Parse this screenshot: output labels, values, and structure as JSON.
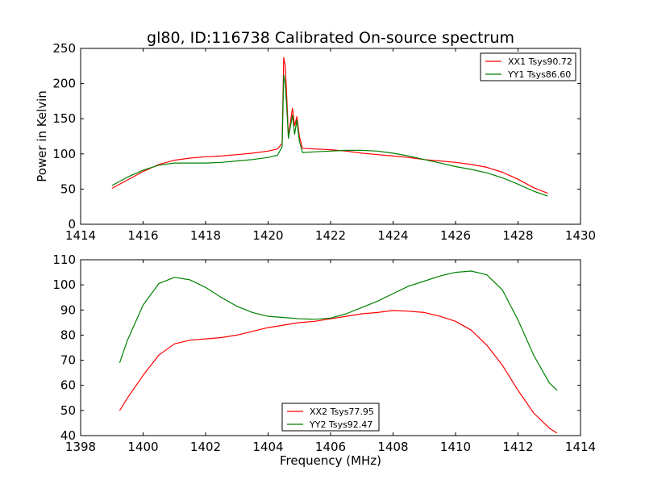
{
  "chart_data": [
    {
      "type": "line",
      "title": "gl80, ID:116738 Calibrated On-source spectrum",
      "xlabel": "",
      "ylabel": "Power in Kelvin",
      "xlim": [
        1414,
        1430
      ],
      "ylim": [
        0,
        250
      ],
      "xticks": [
        1414,
        1416,
        1418,
        1420,
        1422,
        1424,
        1426,
        1428,
        1430
      ],
      "yticks": [
        0,
        50,
        100,
        150,
        200,
        250
      ],
      "legend_position": "upper right",
      "series": [
        {
          "name": "XX1 Tsys90.72",
          "color": "#ff0000",
          "x": [
            1415.0,
            1415.5,
            1416.0,
            1416.5,
            1417.0,
            1417.5,
            1418.0,
            1418.5,
            1419.0,
            1419.5,
            1420.0,
            1420.3,
            1420.45,
            1420.5,
            1420.55,
            1420.6,
            1420.65,
            1420.7,
            1420.78,
            1420.85,
            1420.92,
            1421.0,
            1421.1,
            1421.5,
            1422.0,
            1422.5,
            1423.0,
            1423.5,
            1424.0,
            1424.5,
            1425.0,
            1425.5,
            1426.0,
            1426.5,
            1427.0,
            1427.5,
            1428.0,
            1428.5,
            1428.95
          ],
          "y": [
            51,
            63,
            75,
            85,
            91,
            94,
            96,
            97,
            99,
            101,
            104,
            107,
            115,
            237,
            225,
            180,
            125,
            140,
            165,
            140,
            153,
            125,
            108,
            107,
            106,
            104,
            101,
            99,
            97,
            95,
            92,
            90,
            88,
            85,
            81,
            74,
            64,
            52,
            44
          ]
        },
        {
          "name": "YY1 Tsys86.60",
          "color": "#008000",
          "x": [
            1415.0,
            1415.5,
            1416.0,
            1416.5,
            1417.0,
            1417.5,
            1418.0,
            1418.5,
            1419.0,
            1419.5,
            1420.0,
            1420.3,
            1420.45,
            1420.5,
            1420.55,
            1420.6,
            1420.65,
            1420.7,
            1420.78,
            1420.85,
            1420.92,
            1421.0,
            1421.1,
            1421.5,
            1422.0,
            1422.5,
            1423.0,
            1423.5,
            1424.0,
            1424.5,
            1425.0,
            1425.5,
            1426.0,
            1426.5,
            1427.0,
            1427.5,
            1428.0,
            1428.5,
            1428.95
          ],
          "y": [
            55,
            67,
            77,
            84,
            87,
            87,
            87,
            88,
            90,
            92,
            95,
            98,
            110,
            212,
            200,
            165,
            122,
            135,
            155,
            128,
            148,
            118,
            102,
            103,
            104,
            105,
            105,
            104,
            101,
            97,
            92,
            87,
            82,
            78,
            73,
            66,
            57,
            47,
            40
          ]
        }
      ]
    },
    {
      "type": "line",
      "title": "",
      "xlabel": "Frequency (MHz)",
      "ylabel": "",
      "xlim": [
        1398,
        1414
      ],
      "ylim": [
        40,
        110
      ],
      "xticks": [
        1398,
        1400,
        1402,
        1404,
        1406,
        1408,
        1410,
        1412,
        1414
      ],
      "yticks": [
        40,
        50,
        60,
        70,
        80,
        90,
        100,
        110
      ],
      "legend_position": "lower center",
      "series": [
        {
          "name": "XX2 Tsys77.95",
          "color": "#ff0000",
          "x": [
            1399.25,
            1399.5,
            1400.0,
            1400.5,
            1401.0,
            1401.5,
            1402.0,
            1402.5,
            1403.0,
            1403.5,
            1404.0,
            1404.5,
            1405.0,
            1405.5,
            1406.0,
            1406.5,
            1407.0,
            1407.5,
            1408.0,
            1408.5,
            1409.0,
            1409.5,
            1410.0,
            1410.5,
            1411.0,
            1411.5,
            1412.0,
            1412.5,
            1413.0,
            1413.25
          ],
          "y": [
            50,
            55,
            64,
            72,
            76.5,
            78,
            78.5,
            79,
            80,
            81.5,
            83,
            84,
            85,
            85.5,
            86.5,
            87.5,
            88.5,
            89,
            89.8,
            89.5,
            89,
            87.5,
            85.5,
            82,
            76,
            68,
            58,
            49,
            43,
            41
          ]
        },
        {
          "name": "YY2 Tsys92.47",
          "color": "#008000",
          "x": [
            1399.25,
            1399.5,
            1400.0,
            1400.5,
            1401.0,
            1401.5,
            1402.0,
            1402.5,
            1403.0,
            1403.5,
            1404.0,
            1404.5,
            1405.0,
            1405.5,
            1406.0,
            1406.5,
            1407.0,
            1407.5,
            1408.0,
            1408.5,
            1409.0,
            1409.5,
            1410.0,
            1410.5,
            1411.0,
            1411.5,
            1412.0,
            1412.5,
            1413.0,
            1413.25
          ],
          "y": [
            69,
            78,
            92,
            100.5,
            103,
            102,
            99,
            95,
            91.5,
            89,
            87.5,
            87,
            86.5,
            86.3,
            86.8,
            88.5,
            91,
            93.5,
            96.5,
            99.5,
            101.5,
            103.5,
            105,
            105.5,
            104,
            98,
            86,
            72,
            61,
            58
          ]
        }
      ]
    }
  ]
}
